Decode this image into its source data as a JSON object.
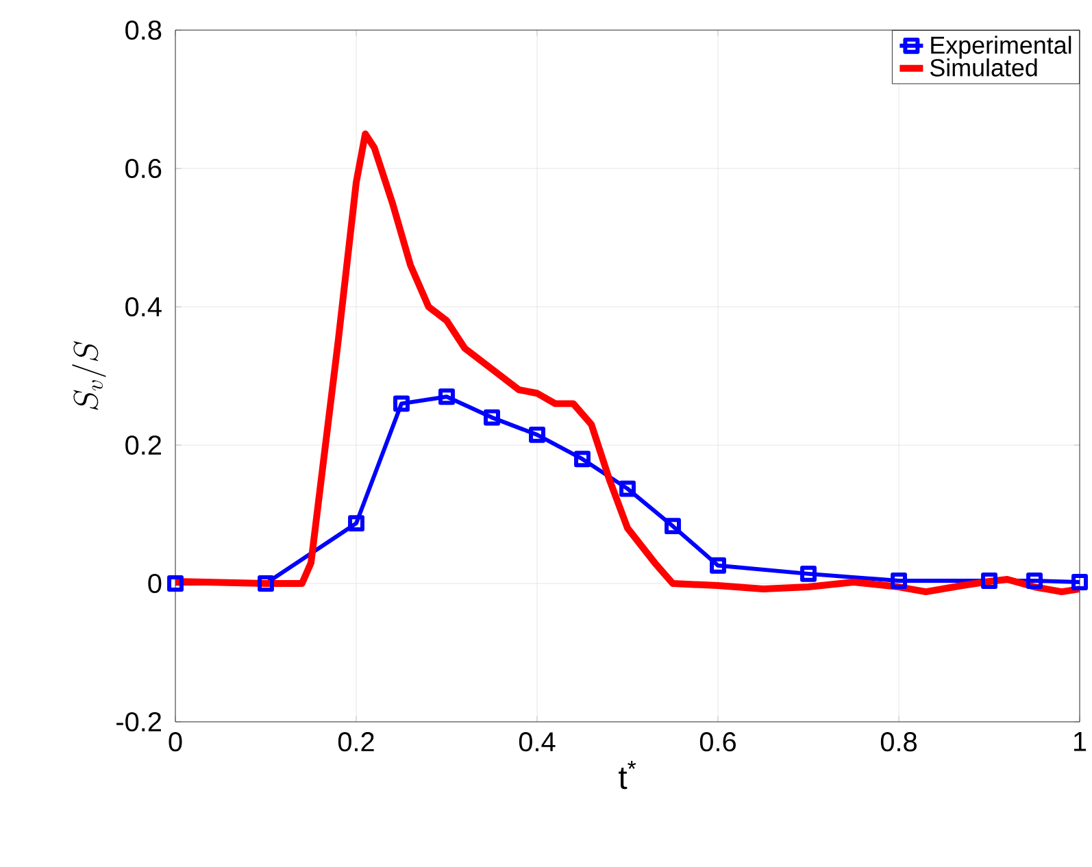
{
  "chart_data": {
    "type": "line",
    "xlabel": "t$^{*}$",
    "ylabel": "S_v/S",
    "xlim": [
      0,
      1
    ],
    "ylim": [
      -0.2,
      0.8
    ],
    "xticks": [
      0,
      0.2,
      0.4,
      0.6,
      0.8,
      1
    ],
    "yticks": [
      -0.2,
      0,
      0.2,
      0.4,
      0.6,
      0.8
    ],
    "grid": true,
    "legend": "top right",
    "series": [
      {
        "name": "Experimental",
        "color": "#0000ff",
        "marker": "square",
        "x": [
          0,
          0.1,
          0.2,
          0.25,
          0.3,
          0.35,
          0.4,
          0.45,
          0.5,
          0.55,
          0.6,
          0.7,
          0.8,
          0.9,
          0.95,
          1.0
        ],
        "values": [
          0,
          0,
          0.087,
          0.26,
          0.27,
          0.24,
          0.215,
          0.18,
          0.137,
          0.083,
          0.026,
          0.014,
          0.004,
          0.004,
          0.004,
          0.002
        ]
      },
      {
        "name": "Simulated",
        "color": "#ff0000",
        "marker": "none",
        "x": [
          0,
          0.1,
          0.14,
          0.15,
          0.18,
          0.2,
          0.21,
          0.22,
          0.24,
          0.26,
          0.28,
          0.3,
          0.32,
          0.35,
          0.38,
          0.4,
          0.42,
          0.44,
          0.46,
          0.48,
          0.5,
          0.53,
          0.55,
          0.6,
          0.65,
          0.7,
          0.75,
          0.8,
          0.83,
          0.87,
          0.9,
          0.92,
          0.95,
          0.98,
          1.0
        ],
        "values": [
          0.003,
          0,
          0,
          0.03,
          0.35,
          0.58,
          0.65,
          0.63,
          0.55,
          0.46,
          0.4,
          0.38,
          0.34,
          0.31,
          0.28,
          0.275,
          0.26,
          0.26,
          0.23,
          0.15,
          0.08,
          0.03,
          0,
          -0.003,
          -0.008,
          -0.005,
          0.002,
          -0.005,
          -0.012,
          -0.003,
          0.003,
          0.006,
          -0.005,
          -0.012,
          -0.008
        ]
      }
    ]
  }
}
